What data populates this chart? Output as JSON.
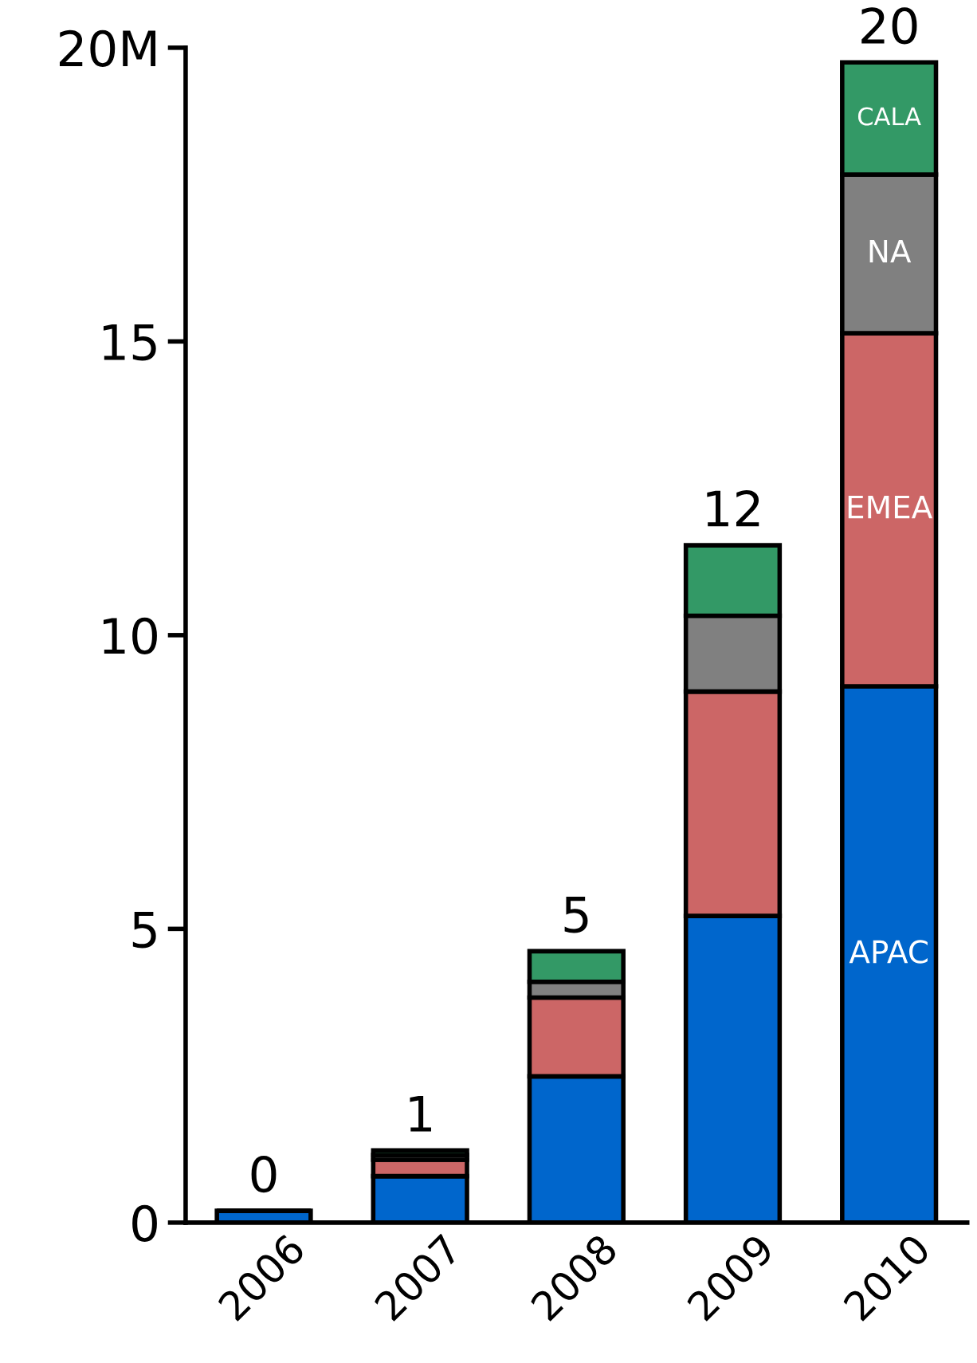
{
  "chart_data": {
    "type": "bar",
    "stacked": true,
    "categories": [
      "2006",
      "2007",
      "2008",
      "2009",
      "2010"
    ],
    "series": [
      {
        "name": "APAC",
        "color": "#0066cc",
        "values": [
          0.2,
          0.79,
          2.49,
          5.22,
          9.13
        ]
      },
      {
        "name": "EMEA",
        "color": "#cc6666",
        "values": [
          null,
          0.28,
          1.34,
          3.82,
          6.01
        ]
      },
      {
        "name": "NA",
        "color": "#808080",
        "values": [
          null,
          0.08,
          0.27,
          1.29,
          2.7
        ]
      },
      {
        "name": "CALA",
        "color": "#339966",
        "values": [
          null,
          0.08,
          0.52,
          1.2,
          1.91
        ]
      }
    ],
    "ylim": [
      0,
      20
    ],
    "yticks": [
      0,
      5,
      10,
      15,
      {
        "value": 20,
        "label": "20M"
      }
    ],
    "totals": [
      "0",
      "1",
      "5",
      "12",
      "20"
    ],
    "grid": false,
    "legend": false
  }
}
